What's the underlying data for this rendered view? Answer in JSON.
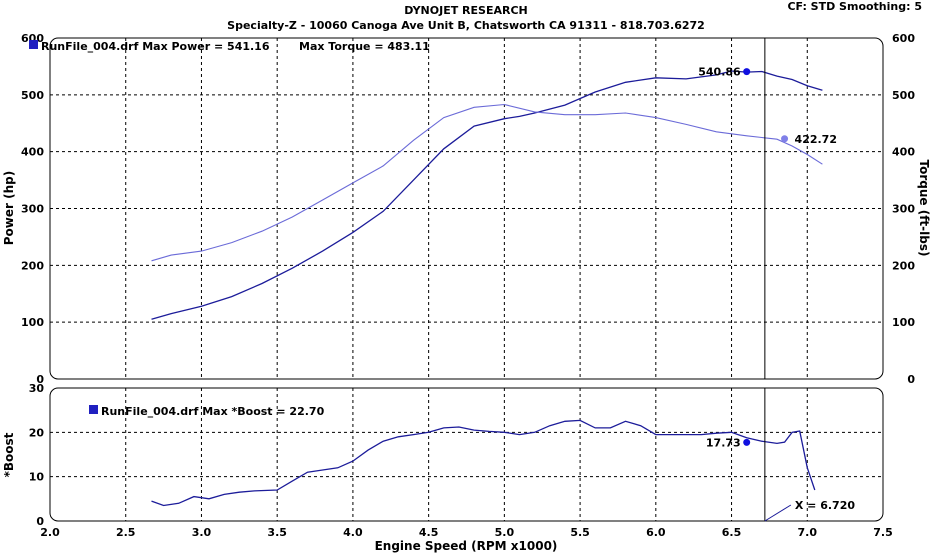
{
  "header": {
    "title": "DYNOJET RESEARCH",
    "subtitle": "Specialty-Z - 10060 Canoga Ave Unit B, Chatsworth CA 91311 - 818.703.6272",
    "cf_smoothing": "CF: STD  Smoothing: 5"
  },
  "colors": {
    "power": "#1c1c9a",
    "torque": "#6b6bd8",
    "boost": "#1c1c9a",
    "marker": "#1010e0",
    "marker_light": "#8080e8",
    "legend_box": "#2020c0",
    "grid": "#000000",
    "cursor": "#000000"
  },
  "top_chart": {
    "legend_power": "RunFile_004.drf Max Power = 541.16",
    "legend_torque": "Max Torque = 483.11",
    "ylabel_left": "Power (hp)",
    "ylabel_right": "Torque (ft-lbs)",
    "marker_power_label": "540.86",
    "marker_torque_label": "422.72"
  },
  "bottom_chart": {
    "legend": "RunFile_004.drf Max *Boost = 22.70",
    "ylabel": "*Boost",
    "marker_label": "17.73",
    "cursor_label": "X = 6.720"
  },
  "xlabel": "Engine Speed (RPM x1000)",
  "chart_data": [
    {
      "type": "line",
      "title": "",
      "xlabel": "Engine Speed (RPM x1000)",
      "ylabel": "Power (hp)",
      "y2label": "Torque (ft-lbs)",
      "xlim": [
        2.0,
        7.5
      ],
      "ylim": [
        0,
        600
      ],
      "y2lim": [
        0,
        600
      ],
      "x_ticks": [
        "2.0",
        "2.5",
        "3.0",
        "3.5",
        "4.0",
        "4.5",
        "5.0",
        "5.5",
        "6.0",
        "6.5",
        "7.0",
        "7.5"
      ],
      "y_ticks": [
        "0",
        "100",
        "200",
        "300",
        "400",
        "500",
        "600"
      ],
      "grid": true,
      "cursor_x": 6.72,
      "series": [
        {
          "name": "RunFile_004.drf Max Power = 541.16",
          "axis": "left",
          "x": [
            2.67,
            2.8,
            3.0,
            3.2,
            3.4,
            3.6,
            3.8,
            4.0,
            4.2,
            4.4,
            4.6,
            4.8,
            5.0,
            5.1,
            5.2,
            5.4,
            5.6,
            5.8,
            6.0,
            6.2,
            6.4,
            6.5,
            6.6,
            6.7,
            6.8,
            6.9,
            7.0,
            7.1
          ],
          "y": [
            105,
            115,
            128,
            145,
            168,
            195,
            225,
            258,
            295,
            350,
            405,
            445,
            458,
            462,
            468,
            482,
            505,
            522,
            530,
            528,
            535,
            542,
            540,
            541,
            533,
            527,
            516,
            508
          ]
        },
        {
          "name": "Max Torque = 483.11",
          "axis": "right",
          "x": [
            2.67,
            2.8,
            3.0,
            3.2,
            3.4,
            3.6,
            3.8,
            4.0,
            4.2,
            4.4,
            4.6,
            4.8,
            5.0,
            5.2,
            5.4,
            5.6,
            5.8,
            6.0,
            6.2,
            6.4,
            6.6,
            6.8,
            6.9,
            7.0,
            7.1
          ],
          "y": [
            208,
            218,
            225,
            240,
            260,
            285,
            315,
            345,
            375,
            420,
            460,
            478,
            483,
            470,
            465,
            465,
            468,
            460,
            448,
            435,
            428,
            422,
            410,
            395,
            378
          ]
        }
      ],
      "markers": [
        {
          "series": "power",
          "x": 6.6,
          "y": 540.86,
          "label": "540.86"
        },
        {
          "series": "torque",
          "x": 6.85,
          "y": 422.72,
          "label": "422.72"
        }
      ]
    },
    {
      "type": "line",
      "title": "",
      "xlabel": "Engine Speed (RPM x1000)",
      "ylabel": "*Boost",
      "xlim": [
        2.0,
        7.5
      ],
      "ylim": [
        0,
        30
      ],
      "x_ticks": [
        "2.0",
        "2.5",
        "3.0",
        "3.5",
        "4.0",
        "4.5",
        "5.0",
        "5.5",
        "6.0",
        "6.5",
        "7.0",
        "7.5"
      ],
      "y_ticks": [
        "0",
        "10",
        "20",
        "30"
      ],
      "grid": true,
      "cursor_x": 6.72,
      "series": [
        {
          "name": "RunFile_004.drf Max *Boost = 22.70",
          "x": [
            2.67,
            2.75,
            2.85,
            2.95,
            3.05,
            3.15,
            3.25,
            3.35,
            3.5,
            3.6,
            3.7,
            3.8,
            3.9,
            4.0,
            4.1,
            4.2,
            4.3,
            4.4,
            4.5,
            4.6,
            4.7,
            4.8,
            4.9,
            5.0,
            5.1,
            5.2,
            5.3,
            5.4,
            5.5,
            5.6,
            5.7,
            5.8,
            5.9,
            6.0,
            6.1,
            6.2,
            6.3,
            6.4,
            6.5,
            6.6,
            6.7,
            6.8,
            6.85,
            6.9,
            6.95,
            7.0,
            7.05
          ],
          "y": [
            4.5,
            3.5,
            4.0,
            5.5,
            5.0,
            6.0,
            6.5,
            6.8,
            7.0,
            9.0,
            11.0,
            11.5,
            12.0,
            13.5,
            16.0,
            18.0,
            19.0,
            19.5,
            20.0,
            21.0,
            21.2,
            20.5,
            20.2,
            20.0,
            19.5,
            20.0,
            21.5,
            22.5,
            22.7,
            21.0,
            21.0,
            22.5,
            21.5,
            19.5,
            19.5,
            19.5,
            19.5,
            19.8,
            20.0,
            18.8,
            18.0,
            17.5,
            17.8,
            20.0,
            20.3,
            12.0,
            7.0
          ]
        }
      ],
      "markers": [
        {
          "x": 6.6,
          "y": 17.73,
          "label": "17.73"
        }
      ]
    }
  ]
}
